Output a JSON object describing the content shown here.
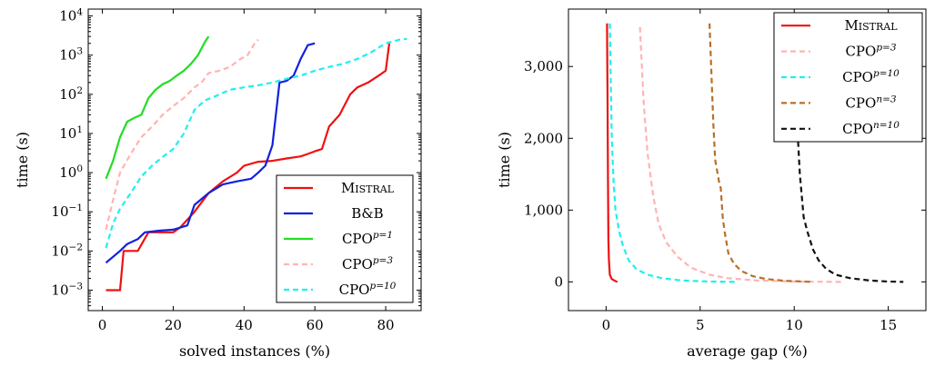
{
  "chart_data": [
    {
      "type": "line",
      "xlabel": "solved instances (%)",
      "ylabel": "time (s)",
      "xlim": [
        -4,
        90
      ],
      "ylim": [
        0.0003,
        15000
      ],
      "yscale": "log",
      "x_ticks": [
        0,
        20,
        40,
        60,
        80
      ],
      "x_tick_labels": [
        "0",
        "20",
        "40",
        "60",
        "80"
      ],
      "y_ticks": [
        0.001,
        0.01,
        0.1,
        1,
        10,
        100,
        1000,
        10000
      ],
      "y_tick_labels": [
        {
          "base": "10",
          "exp": "−3"
        },
        {
          "base": "10",
          "exp": "−2"
        },
        {
          "base": "10",
          "exp": "−1"
        },
        {
          "base": "10",
          "exp": "0"
        },
        {
          "base": "10",
          "exp": "1"
        },
        {
          "base": "10",
          "exp": "2"
        },
        {
          "base": "10",
          "exp": "3"
        },
        {
          "base": "10",
          "exp": "4"
        }
      ],
      "grid": false,
      "legend_position": "bottom-right",
      "series": [
        {
          "label_main": "Mistral",
          "label_sup": "",
          "smallcaps": true,
          "color": "#ee1111",
          "dash": "solid",
          "x": [
            1,
            5,
            6,
            10,
            13,
            20,
            22,
            26,
            30,
            34,
            38,
            40,
            44,
            48,
            52,
            56,
            58,
            60,
            62,
            64,
            67,
            70,
            72,
            75,
            78,
            80,
            81
          ],
          "y": [
            0.001,
            0.001,
            0.01,
            0.01,
            0.03,
            0.03,
            0.04,
            0.1,
            0.3,
            0.6,
            1,
            1.5,
            1.9,
            2,
            2.3,
            2.6,
            3,
            3.5,
            4,
            15,
            30,
            100,
            150,
            200,
            300,
            400,
            2000
          ]
        },
        {
          "label_main": "B&B",
          "label_sup": "",
          "smallcaps": false,
          "color": "#1122dd",
          "dash": "solid",
          "x": [
            1,
            5,
            7,
            10,
            12,
            16,
            20,
            24,
            26,
            30,
            34,
            38,
            42,
            44,
            46,
            48,
            50,
            52,
            54,
            56,
            58,
            60
          ],
          "y": [
            0.005,
            0.01,
            0.015,
            0.02,
            0.03,
            0.033,
            0.035,
            0.045,
            0.15,
            0.3,
            0.5,
            0.6,
            0.7,
            1,
            1.5,
            5,
            200,
            220,
            300,
            800,
            1800,
            2000
          ]
        },
        {
          "label_main": "CPO",
          "label_sup": "p=1",
          "smallcaps": false,
          "color": "#22dd22",
          "dash": "solid",
          "x": [
            1,
            3,
            5,
            7,
            9,
            11,
            13,
            15,
            17,
            19,
            21,
            23,
            25,
            27,
            29,
            30
          ],
          "y": [
            0.7,
            2,
            8,
            20,
            25,
            30,
            80,
            130,
            180,
            220,
            300,
            400,
            600,
            1000,
            2200,
            3000
          ]
        },
        {
          "label_main": "CPO",
          "label_sup": "p=3",
          "smallcaps": false,
          "color": "#ffb3b3",
          "dash": "dashed",
          "x": [
            1,
            3,
            5,
            8,
            11,
            14,
            17,
            20,
            23,
            26,
            28,
            30,
            33,
            36,
            39,
            41,
            43,
            44
          ],
          "y": [
            0.035,
            0.2,
            1,
            3,
            8,
            15,
            30,
            50,
            80,
            150,
            200,
            350,
            400,
            500,
            800,
            1000,
            2000,
            2500
          ]
        },
        {
          "label_main": "CPO",
          "label_sup": "p=10",
          "smallcaps": false,
          "color": "#22eeee",
          "dash": "dashed",
          "x": [
            1,
            3,
            5,
            8,
            11,
            14,
            17,
            20,
            23,
            26,
            29,
            32,
            36,
            40,
            44,
            48,
            52,
            56,
            60,
            64,
            68,
            72,
            76,
            80,
            84,
            86
          ],
          "y": [
            0.012,
            0.05,
            0.12,
            0.3,
            0.8,
            1.5,
            2.5,
            4,
            10,
            40,
            70,
            90,
            130,
            150,
            170,
            200,
            250,
            300,
            400,
            500,
            600,
            800,
            1200,
            2000,
            2500,
            2600
          ]
        }
      ]
    },
    {
      "type": "line",
      "xlabel": "average gap (%)",
      "ylabel": "time (s)",
      "xlim": [
        -2,
        17
      ],
      "ylim": [
        -400,
        3800
      ],
      "x_ticks": [
        0,
        5,
        10,
        15
      ],
      "x_tick_labels": [
        "0",
        "5",
        "10",
        "15"
      ],
      "y_ticks": [
        0,
        1000,
        2000,
        3000
      ],
      "y_tick_labels": [
        "0",
        "1,000",
        "2,000",
        "3,000"
      ],
      "grid": false,
      "legend_position": "top-right",
      "series": [
        {
          "label_main": "Mistral",
          "label_sup": "",
          "smallcaps": true,
          "color": "#ee1111",
          "dash": "solid",
          "x": [
            0.05,
            0.08,
            0.1,
            0.12,
            0.15,
            0.2,
            0.3,
            0.5,
            0.6
          ],
          "y": [
            3600,
            2500,
            1500,
            600,
            300,
            100,
            40,
            10,
            0
          ]
        },
        {
          "label_main": "CPO",
          "label_sup": "p=3",
          "smallcaps": false,
          "color": "#ffb3b3",
          "dash": "dashed",
          "x": [
            1.8,
            2,
            2.2,
            2.5,
            2.8,
            3.2,
            3.8,
            4.5,
            5.5,
            6.5,
            8,
            10,
            12.5
          ],
          "y": [
            3550,
            2500,
            1800,
            1200,
            800,
            550,
            350,
            200,
            100,
            50,
            20,
            5,
            0
          ]
        },
        {
          "label_main": "CPO",
          "label_sup": "p=10",
          "smallcaps": false,
          "color": "#22eeee",
          "dash": "dashed",
          "x": [
            0.2,
            0.25,
            0.3,
            0.4,
            0.5,
            0.7,
            0.9,
            1.2,
            1.6,
            2.2,
            3,
            4,
            5.5,
            7
          ],
          "y": [
            3600,
            2800,
            2000,
            1400,
            1000,
            700,
            500,
            300,
            180,
            100,
            50,
            20,
            5,
            0
          ]
        },
        {
          "label_main": "CPO",
          "label_sup": "n=3",
          "smallcaps": false,
          "color": "#b8702a",
          "dash": "dashed",
          "x": [
            5.5,
            5.6,
            5.7,
            5.8,
            6,
            6.1,
            6.2,
            6.3,
            6.5,
            6.8,
            7.2,
            7.8,
            8.5,
            9.5,
            10.5,
            11
          ],
          "y": [
            3600,
            2900,
            2200,
            1700,
            1400,
            1300,
            900,
            700,
            400,
            250,
            150,
            80,
            40,
            15,
            5,
            0
          ]
        },
        {
          "label_main": "CPO",
          "label_sup": "n=10",
          "smallcaps": false,
          "color": "#111111",
          "dash": "dashed",
          "x": [
            10,
            10.1,
            10.2,
            10.3,
            10.4,
            10.5,
            10.7,
            11,
            11.3,
            11.7,
            12.2,
            13,
            14,
            15,
            15.8
          ],
          "y": [
            3600,
            2800,
            2000,
            1500,
            1200,
            900,
            700,
            450,
            300,
            180,
            100,
            50,
            20,
            5,
            0
          ]
        }
      ]
    }
  ]
}
